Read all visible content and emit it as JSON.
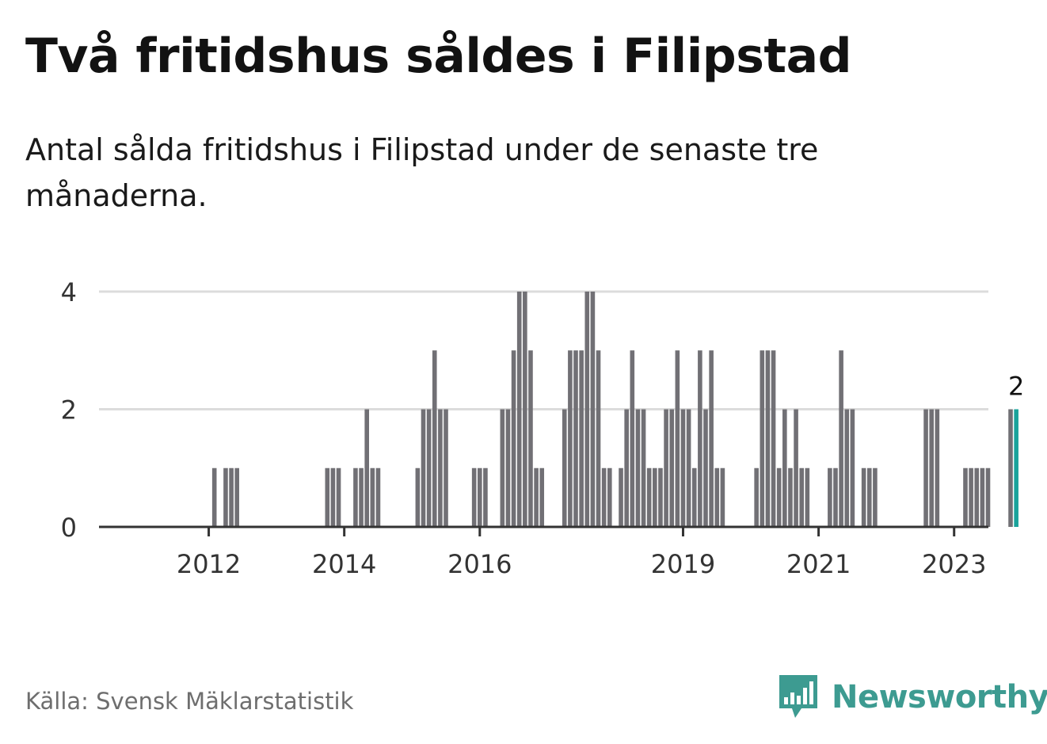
{
  "title": "Två fritidshus såldes i Filipstad",
  "subtitle": "Antal sålda fritidshus i Filipstad under de senaste tre månaderna.",
  "source": "Källa: Svensk Mäklarstatistik",
  "brand": "Newsworthy",
  "colors": {
    "bar": "#717075",
    "highlight": "#1aa39b",
    "grid": "#dcdcdc",
    "axis": "#333333",
    "brand": "#3d9b91"
  },
  "chart_data": {
    "type": "bar",
    "x_ticks": [
      "2012",
      "2014",
      "2016",
      "2019",
      "2021",
      "2023"
    ],
    "y_ticks": [
      0,
      2,
      4
    ],
    "ylim": [
      0,
      4
    ],
    "grid": "horizontal",
    "highlight_label": "2",
    "values": [
      0,
      0,
      0,
      0,
      0,
      0,
      0,
      0,
      0,
      0,
      0,
      0,
      0,
      1,
      0,
      1,
      1,
      1,
      0,
      0,
      0,
      0,
      0,
      0,
      0,
      0,
      0,
      0,
      0,
      0,
      0,
      0,
      0,
      1,
      1,
      1,
      0,
      0,
      1,
      1,
      2,
      1,
      1,
      0,
      0,
      0,
      0,
      0,
      0,
      1,
      2,
      2,
      3,
      2,
      2,
      0,
      0,
      0,
      0,
      1,
      1,
      1,
      0,
      0,
      2,
      2,
      3,
      4,
      4,
      3,
      1,
      1,
      0,
      0,
      0,
      2,
      3,
      3,
      3,
      4,
      4,
      3,
      1,
      1,
      0,
      1,
      2,
      3,
      2,
      2,
      1,
      1,
      1,
      2,
      2,
      3,
      2,
      2,
      1,
      3,
      2,
      3,
      1,
      1,
      0,
      0,
      0,
      0,
      0,
      1,
      3,
      3,
      3,
      1,
      2,
      1,
      2,
      1,
      1,
      0,
      0,
      0,
      1,
      1,
      3,
      2,
      2,
      0,
      1,
      1,
      1,
      0,
      0,
      0,
      0,
      0,
      0,
      0,
      0,
      2,
      2,
      2,
      0,
      0,
      0,
      0,
      1,
      1,
      1,
      1,
      1,
      0,
      0,
      0,
      2,
      2
    ]
  }
}
